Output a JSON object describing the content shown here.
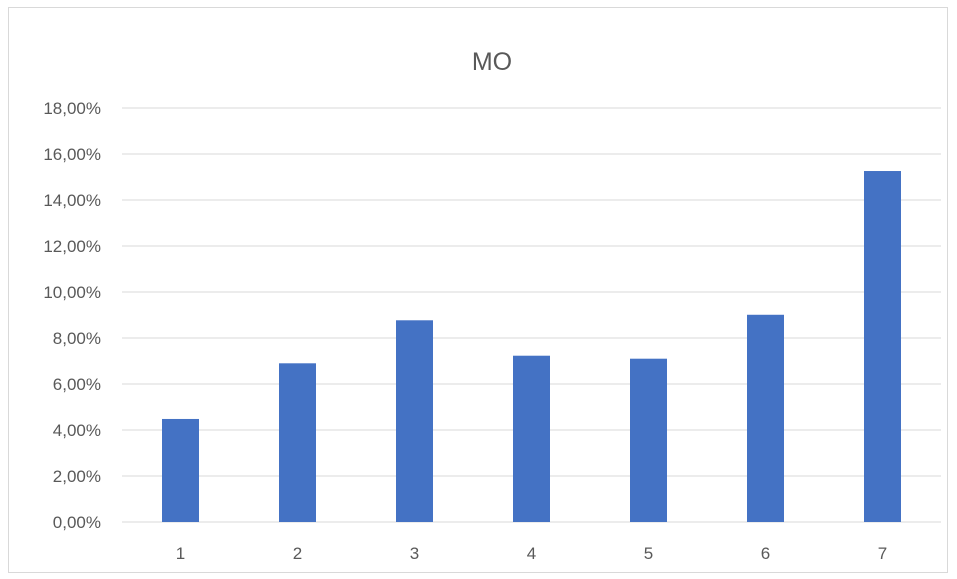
{
  "chart_data": {
    "type": "bar",
    "title": "MO",
    "categories": [
      "1",
      "2",
      "3",
      "4",
      "5",
      "6",
      "7"
    ],
    "series": [
      {
        "values": [
          0.0448,
          0.069,
          0.0877,
          0.0723,
          0.071,
          0.0901,
          0.1526
        ],
        "color": "#4472C4"
      }
    ],
    "ylim": [
      0,
      0.18
    ],
    "yticks": [
      0,
      0.02,
      0.04,
      0.06,
      0.08,
      0.1,
      0.12,
      0.14,
      0.16,
      0.18
    ],
    "ytick_labels": [
      "0,00%",
      "2,00%",
      "4,00%",
      "6,00%",
      "8,00%",
      "10,00%",
      "12,00%",
      "14,00%",
      "16,00%",
      "18,00%"
    ],
    "grid": true,
    "legend": "none",
    "gridline_color": "#d9d9d9"
  }
}
